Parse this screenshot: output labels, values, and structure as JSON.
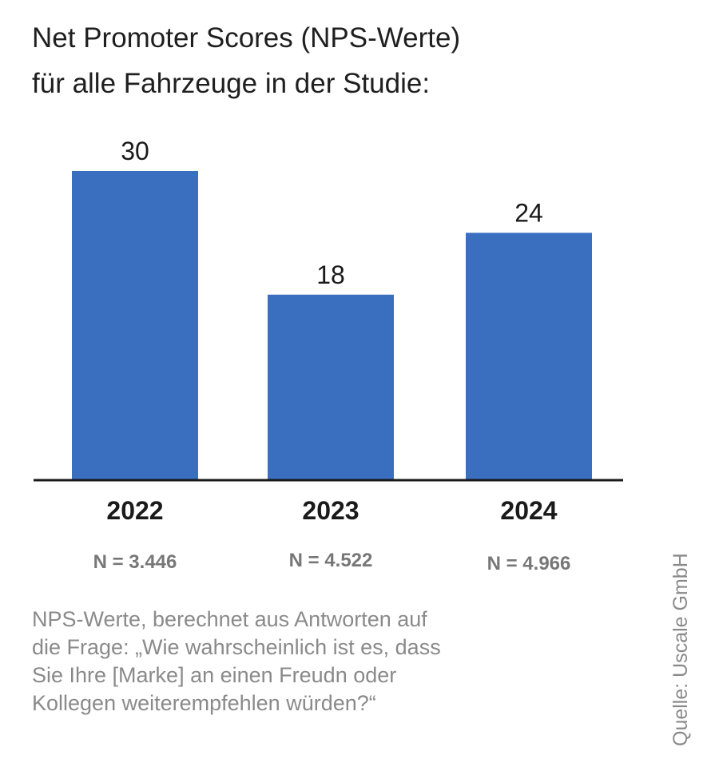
{
  "title_lines": [
    "Net Promoter Scores (NPS-Werte)",
    "für alle Fahrzeuge in der Studie:"
  ],
  "chart_data": {
    "type": "bar",
    "title": "Net Promoter Scores (NPS-Werte) für alle Fahrzeuge in der Studie:",
    "categories": [
      "2022",
      "2023",
      "2024"
    ],
    "values": [
      30,
      18,
      24
    ],
    "value_labels": [
      "30",
      "18",
      "24"
    ],
    "sample_sizes": [
      "N = 3.446",
      "N = 4.522",
      "N = 4.966"
    ],
    "ylim": [
      0,
      30
    ],
    "grid": false,
    "bar_color": "#3a6fc0"
  },
  "footnote_lines": [
    "NPS-Werte, berechnet aus Antworten auf",
    "die Frage: „Wie wahrscheinlich ist es, dass",
    "Sie Ihre [Marke] an einen Freudn oder",
    "Kollegen weiterempfehlen würden?“"
  ],
  "source": "Quelle: Uscale GmbH"
}
